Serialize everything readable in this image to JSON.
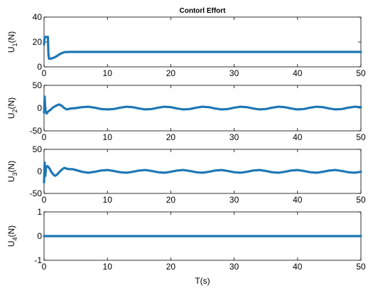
{
  "chart_data": {
    "type": "line",
    "title": "Contorl Effort",
    "xlabel": "T(s)",
    "xlim": [
      0,
      50
    ],
    "xticks": [
      "0",
      "10",
      "20",
      "30",
      "40",
      "50"
    ],
    "series_color": "#1f77b4",
    "subplots": [
      {
        "ylabel_main": "U",
        "ylabel_sub": "1",
        "ylabel_suffix": "(N)",
        "ylim": [
          0,
          40
        ],
        "yticks": [
          "0",
          "20",
          "40"
        ],
        "series": [
          {
            "x": [
              0,
              0.1,
              0.2,
              0.4,
              0.6,
              0.7,
              0.8,
              1.0,
              1.3,
              1.6,
              2.0,
              2.4,
              2.8,
              3.2,
              4,
              5,
              10,
              20,
              30,
              40,
              50
            ],
            "y": [
              18,
              24,
              24,
              24,
              24,
              10,
              6.5,
              6.5,
              7,
              7.5,
              8.5,
              10,
              11,
              11.8,
              12,
              12,
              12,
              12,
              12,
              12,
              12
            ]
          }
        ]
      },
      {
        "ylabel_main": "U",
        "ylabel_sub": "2",
        "ylabel_suffix": "(N)",
        "ylim": [
          -50,
          50
        ],
        "yticks": [
          "-50",
          "0",
          "50"
        ],
        "series": [
          {
            "x": [
              0,
              0.1,
              0.2,
              0.4,
              0.6,
              0.8,
              1.0,
              1.3,
              1.6,
              2.0,
              2.4,
              2.8,
              3.2,
              3.6,
              4.2,
              5,
              6,
              7,
              8,
              9,
              10,
              11,
              12,
              13,
              14,
              15,
              16,
              17,
              18,
              19,
              20,
              21,
              22,
              23,
              24,
              25,
              26,
              27,
              28,
              29,
              30,
              31,
              32,
              33,
              34,
              35,
              36,
              37,
              38,
              39,
              40,
              41,
              42,
              43,
              44,
              45,
              46,
              47,
              48,
              49,
              50
            ],
            "y": [
              -10,
              25,
              -5,
              -12,
              -8,
              -6,
              -4,
              0,
              3,
              6,
              8,
              5,
              0,
              -3,
              -1,
              0,
              2,
              3,
              1,
              -2,
              -3,
              -2,
              1,
              3,
              2,
              -1,
              -3,
              -2,
              1,
              3,
              2,
              -1,
              -3,
              -2,
              1,
              3,
              2,
              -1,
              -3,
              -2,
              1,
              3,
              2,
              -1,
              -3,
              -2,
              1,
              3,
              2,
              -1,
              -3,
              -2,
              1,
              3,
              2,
              -1,
              -3,
              -2,
              1,
              3,
              2
            ]
          }
        ]
      },
      {
        "ylabel_main": "U",
        "ylabel_sub": "3",
        "ylabel_suffix": "(N)",
        "ylim": [
          -50,
          50
        ],
        "yticks": [
          "-50",
          "0",
          "50"
        ],
        "series": [
          {
            "x": [
              0,
              0.1,
              0.2,
              0.3,
              0.5,
              0.7,
              0.9,
              1.1,
              1.4,
              1.7,
              2.0,
              2.4,
              2.8,
              3.2,
              3.6,
              4.0,
              4.5,
              5,
              6,
              7,
              8,
              9,
              10,
              11,
              12,
              13,
              14,
              15,
              16,
              17,
              18,
              19,
              20,
              21,
              22,
              23,
              24,
              25,
              26,
              27,
              28,
              29,
              30,
              31,
              32,
              33,
              34,
              35,
              36,
              37,
              38,
              39,
              40,
              41,
              42,
              43,
              44,
              45,
              46,
              47,
              48,
              49,
              50
            ],
            "y": [
              -25,
              20,
              -10,
              8,
              12,
              10,
              6,
              0,
              -6,
              -10,
              -8,
              -2,
              4,
              8,
              6,
              5,
              5,
              3,
              -1,
              -3,
              -1,
              2,
              3,
              1,
              -2,
              -3,
              -1,
              2,
              3,
              1,
              -2,
              -3,
              -1,
              2,
              3,
              1,
              -2,
              -3,
              -1,
              2,
              3,
              1,
              -2,
              -3,
              -1,
              2,
              3,
              1,
              -2,
              -3,
              -1,
              2,
              3,
              1,
              -2,
              -3,
              -1,
              2,
              3,
              1,
              -2,
              -3,
              -1
            ]
          }
        ]
      },
      {
        "ylabel_main": "U",
        "ylabel_sub": "4",
        "ylabel_suffix": "(N)",
        "ylim": [
          -1,
          1
        ],
        "yticks": [
          "-1",
          "0",
          "1"
        ],
        "series": [
          {
            "x": [
              0,
              50
            ],
            "y": [
              0,
              0
            ]
          }
        ]
      }
    ]
  }
}
